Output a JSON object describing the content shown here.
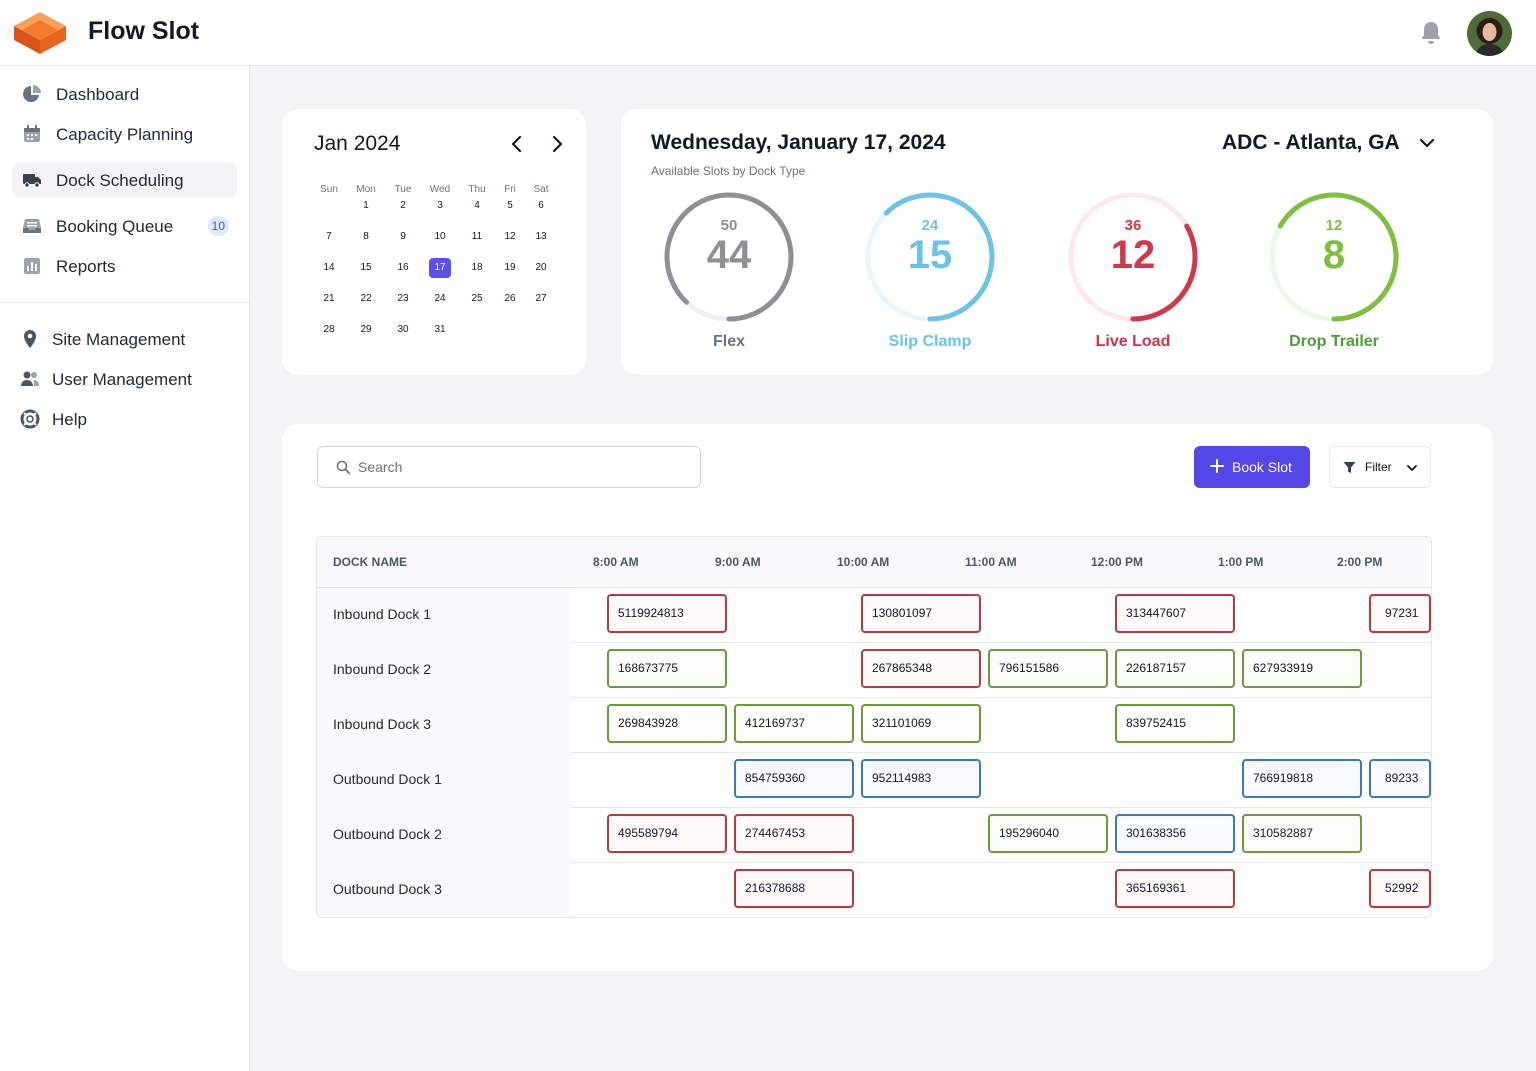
{
  "app": {
    "title": "Flow Slot"
  },
  "header": {
    "notifications_icon": "bell-icon",
    "avatar_alt": "user-avatar"
  },
  "sidebar": {
    "items": [
      {
        "label": "Dashboard",
        "icon": "pie-chart-icon"
      },
      {
        "label": "Capacity Planning",
        "icon": "calendar-icon"
      },
      {
        "label": "Dock Scheduling",
        "icon": "truck-icon",
        "active": true
      },
      {
        "label": "Booking Queue",
        "icon": "inbox-icon",
        "badge": "10"
      },
      {
        "label": "Reports",
        "icon": "bar-chart-icon"
      }
    ],
    "secondary": [
      {
        "label": "Site Management",
        "icon": "map-pin-icon"
      },
      {
        "label": "User Management",
        "icon": "users-icon"
      },
      {
        "label": "Help",
        "icon": "lifebuoy-icon"
      }
    ]
  },
  "calendar": {
    "title": "Jan 2024",
    "weekdays": [
      "Sun",
      "Mon",
      "Tue",
      "Wed",
      "Thu",
      "Fri",
      "Sat"
    ],
    "selected_day": "17",
    "weeks": [
      [
        "",
        "1",
        "2",
        "3",
        "4",
        "5",
        "6"
      ],
      [
        "7",
        "8",
        "9",
        "10",
        "11",
        "12",
        "13"
      ],
      [
        "14",
        "15",
        "16",
        "17",
        "18",
        "19",
        "20"
      ],
      [
        "21",
        "22",
        "23",
        "24",
        "25",
        "26",
        "27"
      ],
      [
        "28",
        "29",
        "30",
        "31",
        "",
        "",
        ""
      ]
    ]
  },
  "summary": {
    "date": "Wednesday, January 17, 2024",
    "subtitle": "Available Slots by Dock Type",
    "site": "ADC - Atlanta, GA",
    "gauges": [
      {
        "name": "Flex",
        "total": "50",
        "available": "44",
        "color": "#8d9196",
        "track": "#eef0f2",
        "name_color": "#6b7280"
      },
      {
        "name": "Slip Clamp",
        "total": "24",
        "available": "15",
        "color": "#6cc3e6",
        "track": "#eaf6fc",
        "name_color": "#6cc3e6"
      },
      {
        "name": "Live Load",
        "total": "36",
        "available": "12",
        "color": "#d2384c",
        "track": "#fde8ec",
        "name_color": "#c8354a"
      },
      {
        "name": "Drop Trailer",
        "total": "12",
        "available": "8",
        "color": "#7fbf3f",
        "track": "#eef8e6",
        "name_color": "#4f9a3b"
      }
    ]
  },
  "schedule": {
    "search_placeholder": "Search",
    "book_label": "Book Slot",
    "filter_label": "Filter",
    "dock_header": "DOCK NAME",
    "times": [
      "8:00 AM",
      "9:00 AM",
      "10:00 AM",
      "11:00 AM",
      "12:00 PM",
      "1:00 PM",
      "2:00 PM"
    ],
    "rows": [
      {
        "name": "Inbound Dock 1",
        "slots": [
          {
            "id": "5119924813",
            "col": 0,
            "status": "red"
          },
          {
            "id": "130801097",
            "col": 2,
            "status": "red"
          },
          {
            "id": "313447607",
            "col": 4,
            "status": "red"
          },
          {
            "id": "97231",
            "col": 6,
            "status": "red"
          }
        ]
      },
      {
        "name": "Inbound Dock 2",
        "slots": [
          {
            "id": "168673775",
            "col": 0,
            "status": "green"
          },
          {
            "id": "267865348",
            "col": 2,
            "status": "red"
          },
          {
            "id": "796151586",
            "col": 3,
            "status": "green"
          },
          {
            "id": "226187157",
            "col": 4,
            "status": "green"
          },
          {
            "id": "627933919",
            "col": 5,
            "status": "green"
          }
        ]
      },
      {
        "name": "Inbound Dock 3",
        "slots": [
          {
            "id": "269843928",
            "col": 0,
            "status": "green"
          },
          {
            "id": "412169737",
            "col": 1,
            "status": "green"
          },
          {
            "id": "321101069",
            "col": 2,
            "status": "green"
          },
          {
            "id": "839752415",
            "col": 4,
            "status": "green"
          }
        ]
      },
      {
        "name": "Outbound Dock 1",
        "slots": [
          {
            "id": "854759360",
            "col": 1,
            "status": "blue"
          },
          {
            "id": "952114983",
            "col": 2,
            "status": "blue"
          },
          {
            "id": "766919818",
            "col": 5,
            "status": "blue"
          },
          {
            "id": "89233",
            "col": 6,
            "status": "blue"
          }
        ]
      },
      {
        "name": "Outbound Dock 2",
        "slots": [
          {
            "id": "495589794",
            "col": 0,
            "status": "red"
          },
          {
            "id": "274467453",
            "col": 1,
            "status": "red"
          },
          {
            "id": "195296040",
            "col": 3,
            "status": "green"
          },
          {
            "id": "301638356",
            "col": 4,
            "status": "blue"
          },
          {
            "id": "310582887",
            "col": 5,
            "status": "green"
          }
        ]
      },
      {
        "name": "Outbound Dock 3",
        "slots": [
          {
            "id": "216378688",
            "col": 1,
            "status": "red"
          },
          {
            "id": "365169361",
            "col": 4,
            "status": "red"
          },
          {
            "id": "52992",
            "col": 6,
            "status": "red"
          }
        ]
      }
    ]
  }
}
